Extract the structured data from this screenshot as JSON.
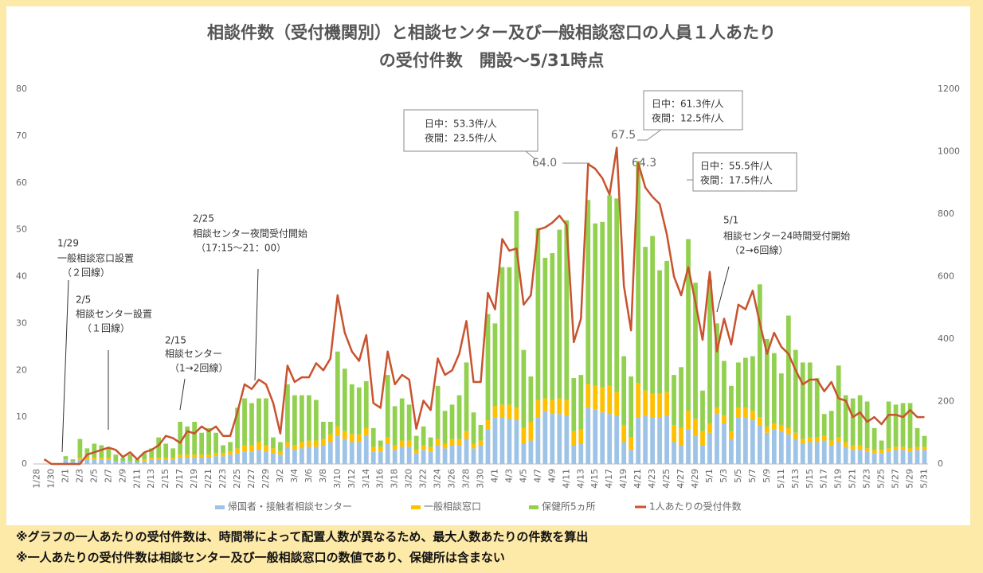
{
  "chart_data": {
    "type": "bar",
    "title": [
      "相談件数（受付機関別）と相談センター及び一般相談窓口の人員１人あたり",
      "の受付件数　開設～5/31時点"
    ],
    "categories": [
      "1/28",
      null,
      "1/30",
      null,
      "2/1",
      null,
      "2/3",
      null,
      "2/5",
      null,
      "2/7",
      null,
      "2/9",
      null,
      "2/11",
      null,
      "2/13",
      null,
      "2/15",
      null,
      "2/17",
      null,
      "2/19",
      null,
      "2/21",
      null,
      "2/23",
      null,
      "2/25",
      null,
      "2/27",
      null,
      "2/29",
      null,
      "3/2",
      null,
      "3/4",
      null,
      "3/6",
      null,
      "3/8",
      null,
      "3/10",
      null,
      "3/12",
      null,
      "3/14",
      null,
      "3/16",
      null,
      "3/18",
      null,
      "3/20",
      null,
      "3/22",
      null,
      "3/24",
      null,
      "3/26",
      null,
      "3/28",
      null,
      "3/30",
      null,
      "4/1",
      null,
      "4/3",
      null,
      "4/5",
      null,
      "4/7",
      null,
      "4/9",
      null,
      "4/11",
      null,
      "4/13",
      null,
      "4/15",
      null,
      "4/17",
      null,
      "4/19",
      null,
      "4/21",
      null,
      "4/23",
      null,
      "4/25",
      null,
      "4/27",
      null,
      "4/29",
      null,
      "5/1",
      null,
      "5/3",
      null,
      "5/5",
      null,
      "5/7",
      null,
      "5/9",
      null,
      "5/11",
      null,
      "5/13",
      null,
      "5/15",
      null,
      "5/17",
      null,
      "5/19",
      null,
      "5/21",
      null,
      "5/23",
      null,
      "5/25",
      null,
      "5/27",
      null,
      "5/29",
      null,
      "5/31"
    ],
    "series": [
      {
        "name": "帰国者・接触者相談センター",
        "color": "#9dc3e6",
        "axis": "y2",
        "values": [
          0,
          0,
          0,
          0,
          15,
          10,
          15,
          15,
          15,
          15,
          15,
          10,
          10,
          10,
          5,
          10,
          15,
          15,
          15,
          15,
          20,
          20,
          20,
          20,
          20,
          25,
          25,
          30,
          35,
          40,
          40,
          45,
          40,
          35,
          30,
          55,
          45,
          50,
          55,
          55,
          60,
          70,
          90,
          80,
          70,
          70,
          90,
          40,
          40,
          65,
          45,
          55,
          55,
          35,
          45,
          40,
          60,
          50,
          60,
          60,
          80,
          50,
          60,
          110,
          150,
          150,
          145,
          140,
          65,
          75,
          150,
          170,
          160,
          160,
          155,
          60,
          65,
          180,
          175,
          165,
          160,
          155,
          70,
          45,
          150,
          155,
          150,
          150,
          155,
          70,
          60,
          110,
          90,
          60,
          100,
          160,
          130,
          80,
          150,
          150,
          140,
          125,
          100,
          110,
          105,
          95,
          80,
          65,
          70,
          70,
          75,
          60,
          70,
          55,
          45,
          45,
          40,
          35,
          35,
          40,
          45,
          45,
          40,
          45,
          45
        ]
      },
      {
        "name": "一般相談窓口",
        "color": "#ffc000",
        "axis": "y2",
        "values": [
          0,
          0,
          0,
          0,
          0,
          0,
          5,
          5,
          5,
          5,
          5,
          0,
          0,
          0,
          0,
          5,
          5,
          5,
          5,
          5,
          10,
          10,
          10,
          10,
          10,
          10,
          10,
          10,
          15,
          20,
          20,
          25,
          20,
          15,
          10,
          15,
          15,
          20,
          20,
          20,
          20,
          25,
          30,
          25,
          25,
          25,
          25,
          15,
          15,
          20,
          15,
          20,
          20,
          10,
          15,
          15,
          20,
          15,
          20,
          20,
          25,
          15,
          15,
          30,
          35,
          40,
          45,
          40,
          50,
          60,
          55,
          40,
          45,
          50,
          50,
          45,
          45,
          75,
          75,
          80,
          90,
          75,
          55,
          40,
          110,
          80,
          75,
          75,
          75,
          55,
          55,
          60,
          55,
          45,
          30,
          20,
          25,
          25,
          30,
          30,
          30,
          25,
          20,
          20,
          20,
          20,
          20,
          15,
          15,
          15,
          15,
          15,
          15,
          15,
          15,
          15,
          10,
          10,
          10,
          10,
          10,
          10,
          10,
          10,
          10
        ]
      },
      {
        "name": "保健所5ヵ所",
        "color": "#92d050",
        "axis": "y2",
        "values": [
          0,
          0,
          0,
          0,
          10,
          5,
          60,
          30,
          45,
          40,
          30,
          20,
          10,
          20,
          10,
          20,
          30,
          65,
          45,
          30,
          105,
          90,
          105,
          70,
          85,
          65,
          25,
          30,
          130,
          150,
          135,
          140,
          150,
          35,
          30,
          185,
          160,
          150,
          145,
          130,
          55,
          40,
          240,
          200,
          160,
          150,
          150,
          60,
          20,
          200,
          125,
          135,
          115,
          45,
          60,
          30,
          170,
          105,
          110,
          140,
          220,
          100,
          50,
          340,
          265,
          440,
          440,
          630,
          250,
          145,
          550,
          450,
          470,
          540,
          575,
          170,
          175,
          590,
          520,
          530,
          610,
          620,
          220,
          195,
          710,
          460,
          505,
          395,
          420,
          160,
          195,
          550,
          435,
          130,
          460,
          270,
          175,
          145,
          145,
          160,
          175,
          425,
          280,
          225,
          165,
          360,
          265,
          245,
          240,
          190,
          70,
          95,
          230,
          150,
          150,
          160,
          150,
          70,
          30,
          150,
          135,
          140,
          145,
          60,
          35
        ]
      },
      {
        "name": "1人あたりの受付件数",
        "color": "#c8532e",
        "type": "line",
        "values": [
          null,
          1,
          0,
          0,
          0,
          0,
          0,
          2,
          2.5,
          3,
          3.5,
          3,
          1.5,
          2.5,
          1,
          2.5,
          3,
          4,
          6,
          5.5,
          4.5,
          7,
          6.5,
          8,
          7,
          8,
          6,
          6,
          11,
          17,
          16,
          18,
          17,
          13,
          6.5,
          21,
          17.5,
          18.5,
          18.5,
          21.5,
          20,
          22.5,
          36,
          28,
          24,
          22,
          27.5,
          13,
          12,
          24,
          17,
          19,
          18,
          7.5,
          13.5,
          11.5,
          22.5,
          19,
          20,
          23.5,
          30.5,
          17.5,
          17.5,
          36.5,
          33,
          48,
          45.5,
          46,
          34,
          36,
          50,
          50.5,
          51.5,
          53,
          51,
          26,
          31,
          64,
          63,
          61,
          57.5,
          67.5,
          38,
          28.5,
          64.3,
          59,
          57,
          55.5,
          49,
          40,
          36,
          42,
          34.5,
          26.5,
          41,
          24,
          31,
          25.5,
          34,
          33,
          37,
          30,
          23.5,
          28,
          25,
          23.5,
          20,
          17,
          18,
          18,
          15.5,
          17.5,
          14,
          13.5,
          10,
          11,
          9,
          10,
          8.5,
          10.5,
          10.5,
          10,
          11.5,
          10,
          10
        ]
      }
    ],
    "ylim": [
      0,
      80
    ],
    "yticks": [
      0,
      10,
      20,
      30,
      40,
      50,
      60,
      70,
      80
    ],
    "y2lim": [
      0,
      1200
    ],
    "y2ticks": [
      0,
      200,
      400,
      600,
      800,
      1000,
      1200
    ],
    "grid": false,
    "legend": "bottom",
    "annotations": [
      {
        "lines": [
          "1/29",
          "一般相談窓口設置",
          "（２回線）"
        ]
      },
      {
        "lines": [
          "2/5",
          "相談センター設置",
          "（１回線）"
        ]
      },
      {
        "lines": [
          "2/15",
          "相談センター",
          "（1→2回線）"
        ]
      },
      {
        "lines": [
          "2/25",
          "相談センター夜間受付開始",
          "（17:15～21：00）"
        ]
      },
      {
        "lines": [
          "5/1",
          "相談センター24時間受付開始",
          "（2→6回線）"
        ]
      },
      {
        "lines": [
          "日中：53.3件/人",
          "夜間：23.5件/人"
        ]
      },
      {
        "lines": [
          "日中：61.3件/人",
          "夜間：12.5件/人"
        ]
      },
      {
        "lines": [
          "日中：55.5件/人",
          "夜間：17.5件/人"
        ]
      },
      {
        "lines": [
          "64.0"
        ]
      },
      {
        "lines": [
          "67.5"
        ]
      },
      {
        "lines": [
          "64.3"
        ]
      }
    ]
  },
  "notes": [
    "※グラフの一人あたりの受付件数は、時間帯によって配置人数が異なるため、最大人数あたりの件数を算出",
    "※一人あたりの受付件数は相談センター及び一般相談窓口の数値であり、保健所は含まない"
  ]
}
